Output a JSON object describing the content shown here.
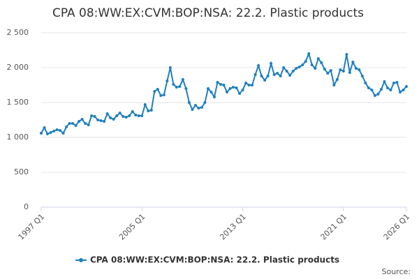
{
  "chart_data": {
    "type": "line",
    "title": "CPA 08:WW:EX:CVM:BOP:NSA: 22.2. Plastic products",
    "source": "Source:",
    "categories": [
      "1997 Q1",
      null,
      null,
      null,
      null,
      null,
      null,
      null,
      null,
      null,
      null,
      null,
      null,
      null,
      null,
      null,
      null,
      null,
      null,
      null,
      null,
      null,
      null,
      null,
      null,
      null,
      null,
      null,
      null,
      null,
      null,
      null,
      "2005 Q1",
      null,
      null,
      null,
      null,
      null,
      null,
      null,
      null,
      null,
      null,
      null,
      null,
      null,
      null,
      null,
      null,
      null,
      null,
      null,
      null,
      null,
      null,
      null,
      null,
      null,
      null,
      null,
      null,
      null,
      null,
      null,
      "2013 Q1",
      null,
      null,
      null,
      null,
      null,
      null,
      null,
      null,
      null,
      null,
      null,
      null,
      null,
      null,
      null,
      null,
      null,
      null,
      null,
      null,
      null,
      null,
      null,
      null,
      null,
      null,
      null,
      null,
      null,
      null,
      null,
      "2021 Q1",
      null,
      null,
      null,
      null,
      null,
      null,
      null,
      null,
      null,
      null,
      null,
      null,
      null,
      null,
      null,
      null,
      null,
      null,
      null,
      "2026 Q1"
    ],
    "series": [
      {
        "name": "CPA 08:WW:EX:CVM:BOP:NSA: 22.2. Plastic products",
        "color": "#1f7fbf",
        "values": [
          1060,
          1140,
          1050,
          1070,
          1090,
          1110,
          1100,
          1060,
          1150,
          1200,
          1200,
          1170,
          1230,
          1260,
          1200,
          1180,
          1310,
          1300,
          1250,
          1240,
          1230,
          1340,
          1280,
          1260,
          1310,
          1350,
          1300,
          1290,
          1310,
          1370,
          1320,
          1310,
          1310,
          1470,
          1380,
          1390,
          1660,
          1690,
          1600,
          1610,
          1810,
          2000,
          1760,
          1720,
          1730,
          1830,
          1700,
          1500,
          1400,
          1460,
          1420,
          1430,
          1500,
          1700,
          1650,
          1580,
          1790,
          1760,
          1750,
          1650,
          1700,
          1720,
          1710,
          1630,
          1680,
          1780,
          1750,
          1750,
          1900,
          2030,
          1880,
          1820,
          1880,
          2060,
          1900,
          1920,
          1880,
          2000,
          1950,
          1890,
          1950,
          1990,
          2010,
          2040,
          2090,
          2200,
          2040,
          1990,
          2130,
          2070,
          1980,
          1920,
          1960,
          1750,
          1830,
          1970,
          1950,
          2190,
          1930,
          2080,
          1990,
          1970,
          1880,
          1780,
          1710,
          1680,
          1600,
          1620,
          1690,
          1800,
          1710,
          1680,
          1780,
          1790,
          1650,
          1680,
          1730
        ]
      }
    ],
    "ylim": [
      0,
      2500
    ],
    "yticks": [
      0,
      500,
      {
        "value": 1000,
        "label": "1 000"
      },
      {
        "value": 1500,
        "label": "1 500"
      },
      {
        "value": 2000,
        "label": "2 000"
      },
      {
        "value": 2500,
        "label": "2 500"
      }
    ],
    "grid": true
  }
}
